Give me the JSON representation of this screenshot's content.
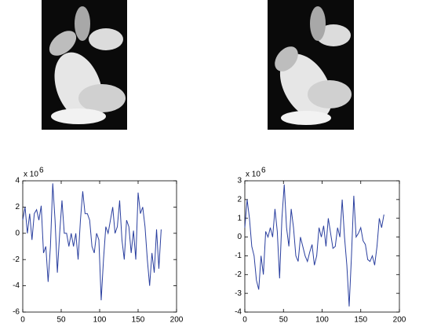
{
  "chart_data": [
    {
      "type": "line",
      "scale_label": "x 10",
      "scale_exponent": "6",
      "x": [
        0,
        3,
        6,
        9,
        12,
        15,
        18,
        21,
        24,
        27,
        30,
        33,
        36,
        39,
        42,
        45,
        48,
        51,
        54,
        57,
        60,
        63,
        66,
        69,
        72,
        75,
        78,
        81,
        84,
        87,
        90,
        93,
        96,
        99,
        102,
        105,
        108,
        111,
        114,
        117,
        120,
        123,
        126,
        129,
        132,
        135,
        138,
        141,
        144,
        147,
        150,
        153,
        156,
        159,
        162,
        165,
        168,
        171,
        174,
        177,
        180
      ],
      "series": [
        {
          "color": "#2a3f9f",
          "values": [
            1,
            2,
            0,
            1.5,
            -0.5,
            1.5,
            1.8,
            1,
            2.1,
            -1.5,
            -1,
            -3.7,
            -1,
            3.8,
            1,
            -3,
            0,
            2.5,
            0,
            0,
            -1,
            0,
            -1,
            0,
            -2,
            1,
            3.2,
            1.5,
            1.5,
            1,
            -1,
            -1.5,
            0,
            -0.5,
            -5.1,
            -2,
            0.5,
            0,
            1,
            2,
            0,
            0.5,
            2.5,
            -0.5,
            -2,
            1,
            0.5,
            -1.5,
            0.2,
            -2,
            3.1,
            1.5,
            2,
            0.5,
            -2,
            -4,
            -1.5,
            -3,
            0.3,
            -2.7,
            0.3
          ]
        }
      ],
      "xlim": [
        0,
        200
      ],
      "xticks": [
        0,
        50,
        100,
        150,
        200
      ],
      "ylim": [
        -6,
        4
      ],
      "yticks": [
        -6,
        -4,
        -2,
        0,
        2,
        4
      ]
    },
    {
      "type": "line",
      "scale_label": "x 10",
      "scale_exponent": "6",
      "x": [
        0,
        3,
        6,
        9,
        12,
        15,
        18,
        21,
        24,
        27,
        30,
        33,
        36,
        39,
        42,
        45,
        48,
        51,
        54,
        57,
        60,
        63,
        66,
        69,
        72,
        75,
        78,
        81,
        84,
        87,
        90,
        93,
        96,
        99,
        102,
        105,
        108,
        111,
        114,
        117,
        120,
        123,
        126,
        129,
        132,
        135,
        138,
        141,
        144,
        147,
        150,
        153,
        156,
        159,
        162,
        165,
        168,
        171,
        174,
        177,
        180
      ],
      "series": [
        {
          "color": "#2a3f9f",
          "values": [
            0.5,
            2,
            1,
            -0.5,
            -1,
            -2.3,
            -2.8,
            -1,
            -2,
            0.3,
            0,
            0.5,
            0,
            1.5,
            0.3,
            -2.2,
            1,
            2.8,
            0.5,
            -0.5,
            1.5,
            0.5,
            -1,
            -1.3,
            0,
            -0.5,
            -1,
            -1.3,
            -0.8,
            -0.4,
            -1.5,
            -1,
            0.5,
            0,
            0.6,
            -0.5,
            1,
            0.2,
            -0.6,
            -0.5,
            0.5,
            0,
            2,
            0,
            -1.5,
            -3.7,
            -1,
            2.2,
            0,
            0.2,
            0.5,
            -0.2,
            -0.4,
            -1.2,
            -1.3,
            -1,
            -1.5,
            -0.5,
            1,
            0.5,
            1.2
          ]
        }
      ],
      "xlim": [
        0,
        200
      ],
      "xticks": [
        0,
        50,
        100,
        150,
        200
      ],
      "ylim": [
        -4,
        3
      ],
      "yticks": [
        -4,
        -3,
        -2,
        -1,
        0,
        1,
        2,
        3
      ]
    }
  ]
}
